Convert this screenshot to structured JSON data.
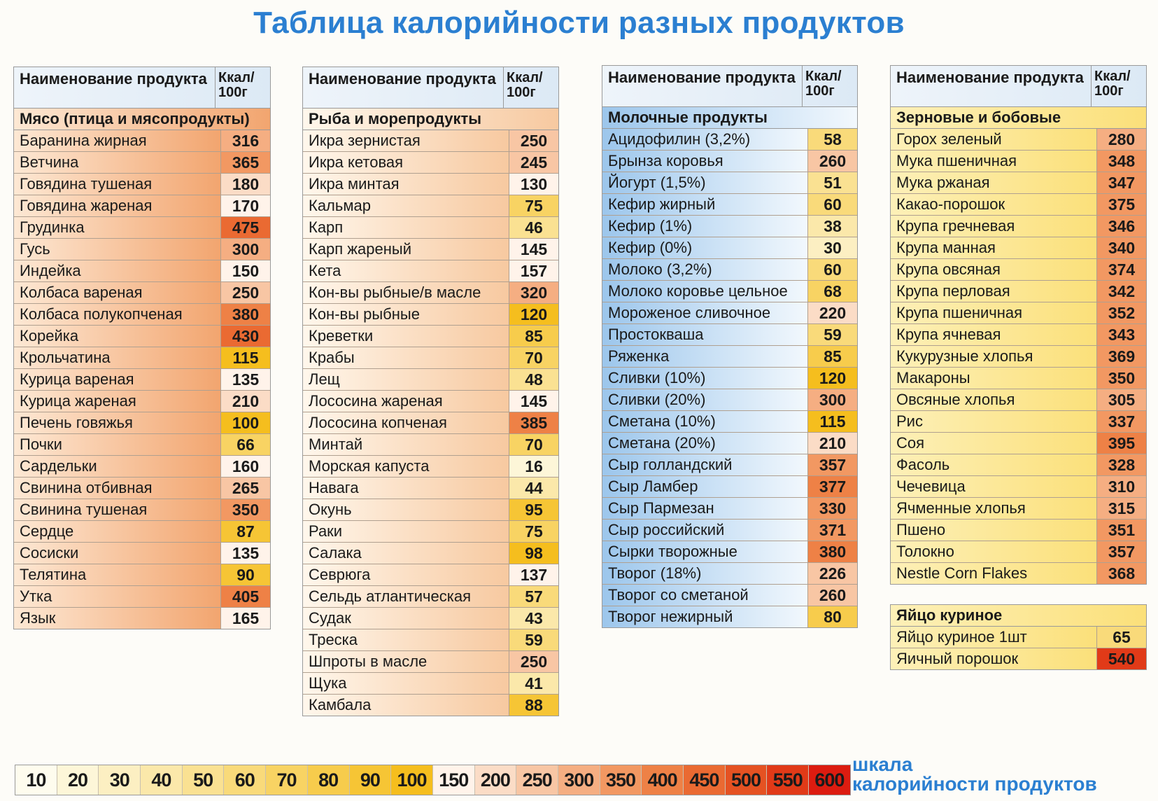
{
  "title": "Таблица калорийности разных продуктов",
  "header": {
    "name": "Наименование продукта",
    "kcal_line1": "Ккал/",
    "kcal_line2": "100г"
  },
  "tables": [
    {
      "id": "meat",
      "category": "Мясо (птица и мясопродукты)",
      "items": [
        [
          "Баранина жирная",
          316
        ],
        [
          "Ветчина",
          365
        ],
        [
          "Говядина тушеная",
          180
        ],
        [
          "Говядина жареная",
          170
        ],
        [
          "Грудинка",
          475
        ],
        [
          "Гусь",
          300
        ],
        [
          "Индейка",
          150
        ],
        [
          "Колбаса вареная",
          250
        ],
        [
          "Колбаса полукопченая",
          380
        ],
        [
          "Корейка",
          430
        ],
        [
          "Крольчатина",
          115
        ],
        [
          "Курица вареная",
          135
        ],
        [
          "Курица жареная",
          210
        ],
        [
          "Печень говяжья",
          100
        ],
        [
          "Почки",
          66
        ],
        [
          "Сардельки",
          160
        ],
        [
          "Свинина отбивная",
          265
        ],
        [
          "Свинина тушеная",
          350
        ],
        [
          "Сердце",
          87
        ],
        [
          "Сосиски",
          135
        ],
        [
          "Телятина",
          90
        ],
        [
          "Утка",
          405
        ],
        [
          "Язык",
          165
        ]
      ]
    },
    {
      "id": "fish",
      "category": "Рыба и морепродукты",
      "items": [
        [
          "Икра зернистая",
          250
        ],
        [
          "Икра кетовая",
          245
        ],
        [
          "Икра минтая",
          130
        ],
        [
          "Кальмар",
          75
        ],
        [
          "Карп",
          46
        ],
        [
          "Карп жареный",
          145
        ],
        [
          "Кета",
          157
        ],
        [
          "Кон-вы рыбные/в масле",
          320
        ],
        [
          "Кон-вы рыбные",
          120
        ],
        [
          "Креветки",
          85
        ],
        [
          "Крабы",
          70
        ],
        [
          "Лещ",
          48
        ],
        [
          "Лососина жареная",
          145
        ],
        [
          "Лососина копченая",
          385
        ],
        [
          "Минтай",
          70
        ],
        [
          "Морская капуста",
          16
        ],
        [
          "Навага",
          44
        ],
        [
          "Окунь",
          95
        ],
        [
          "Раки",
          75
        ],
        [
          "Салака",
          98
        ],
        [
          "Севрюга",
          137
        ],
        [
          "Сельдь атлантическая",
          57
        ],
        [
          "Судак",
          43
        ],
        [
          "Треска",
          59
        ],
        [
          "Шпроты в масле",
          250
        ],
        [
          "Щука",
          41
        ],
        [
          "Камбала",
          88
        ]
      ]
    },
    {
      "id": "dairy",
      "category": "Молочные продукты",
      "items": [
        [
          "Ацидофилин (3,2%)",
          58
        ],
        [
          "Брынза коровья",
          260
        ],
        [
          "Йогурт (1,5%)",
          51
        ],
        [
          "Кефир жирный",
          60
        ],
        [
          "Кефир (1%)",
          38
        ],
        [
          "Кефир (0%)",
          30
        ],
        [
          "Молоко (3,2%)",
          60
        ],
        [
          "Молоко коровье цельное",
          68
        ],
        [
          "Мороженое сливочное",
          220
        ],
        [
          "Простокваша",
          59
        ],
        [
          "Ряженка",
          85
        ],
        [
          "Сливки (10%)",
          120
        ],
        [
          "Сливки (20%)",
          300
        ],
        [
          "Сметана (10%)",
          115
        ],
        [
          "Сметана (20%)",
          210
        ],
        [
          "Сыр голландский",
          357
        ],
        [
          "Сыр Ламбер",
          377
        ],
        [
          "Сыр Пармезан",
          330
        ],
        [
          "Сыр российский",
          371
        ],
        [
          "Сырки творожные",
          380
        ],
        [
          "Творог (18%)",
          226
        ],
        [
          "Творог со сметаной",
          260
        ],
        [
          "Творог нежирный",
          80
        ]
      ]
    },
    {
      "id": "grain",
      "category": "Зерновые и бобовые",
      "items": [
        [
          "Горох зеленый",
          280
        ],
        [
          "Мука пшеничная",
          348
        ],
        [
          "Мука ржаная",
          347
        ],
        [
          "Какао-порошок",
          375
        ],
        [
          "Крупа гречневая",
          346
        ],
        [
          "Крупа манная",
          340
        ],
        [
          "Крупа овсяная",
          374
        ],
        [
          "Крупа перловая",
          342
        ],
        [
          "Крупа пшеничная",
          352
        ],
        [
          "Крупа ячневая",
          343
        ],
        [
          "Кукурузные хлопья",
          369
        ],
        [
          "Макароны",
          350
        ],
        [
          "Овсяные хлопья",
          305
        ],
        [
          "Рис",
          337
        ],
        [
          "Соя",
          395
        ],
        [
          "Фасоль",
          328
        ],
        [
          "Чечевица",
          310
        ],
        [
          "Ячменные хлопья",
          315
        ],
        [
          "Пшено",
          351
        ],
        [
          "Толокно",
          357
        ],
        [
          "Nestle Corn Flakes",
          368
        ]
      ]
    },
    {
      "id": "egg",
      "category": "Яйцо куриное",
      "items": [
        [
          "Яйцо куриное 1шт",
          65
        ],
        [
          "Яичный порошок",
          540
        ]
      ]
    }
  ],
  "scale": {
    "label_line1": "шкала",
    "label_line2": "калорийности продуктов",
    "steps": [
      10,
      20,
      30,
      40,
      50,
      60,
      70,
      80,
      90,
      100,
      150,
      200,
      250,
      300,
      350,
      400,
      450,
      500,
      550,
      600
    ],
    "colors": [
      "#fefcee",
      "#fdf6d8",
      "#fcefc2",
      "#fbe8aa",
      "#fae192",
      "#f9da7a",
      "#f8d363",
      "#f7cc4c",
      "#f6c535",
      "#f5be1e",
      "#fff3ea",
      "#fbdcc6",
      "#f8c6a4",
      "#f5ae82",
      "#f29862",
      "#ee8146",
      "#ea6a32",
      "#e55222",
      "#e13a18",
      "#dc1c10"
    ]
  }
}
